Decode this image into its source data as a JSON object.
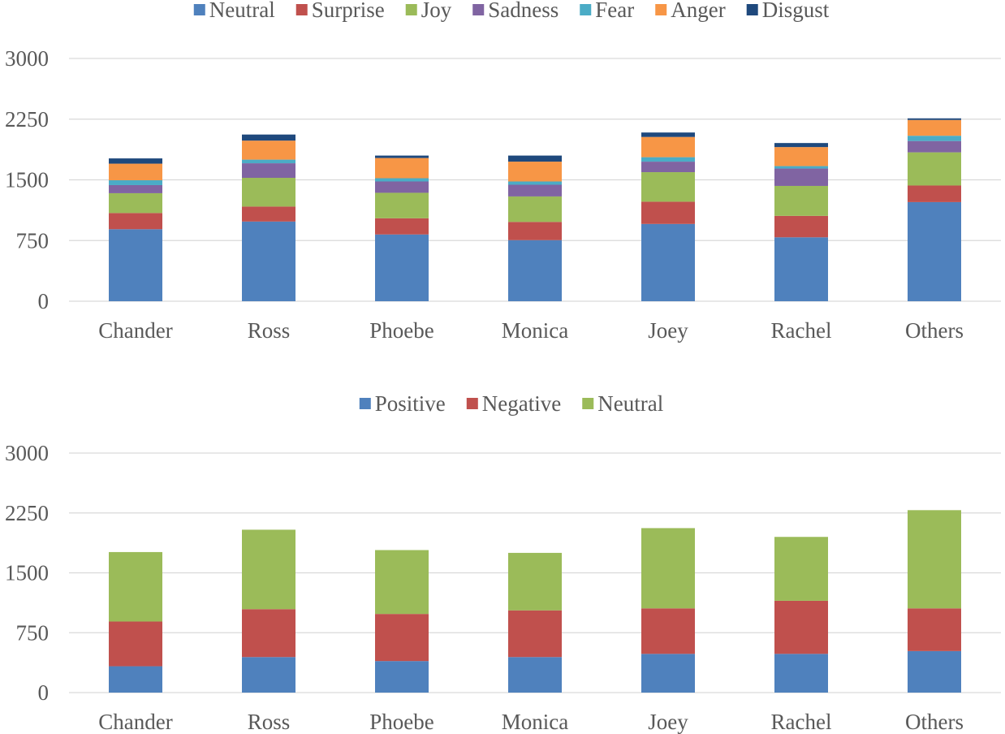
{
  "chart_data": [
    {
      "type": "bar",
      "stacked": true,
      "title": "",
      "xlabel": "",
      "ylabel": "",
      "ylim": [
        0,
        3000
      ],
      "yticks": [
        0,
        750,
        1500,
        2250,
        3000
      ],
      "legend_position": "top-center",
      "categories": [
        "Chander",
        "Ross",
        "Phoebe",
        "Monica",
        "Joey",
        "Rachel",
        "Others"
      ],
      "series": [
        {
          "name": "Neutral",
          "color": "#4f81bd",
          "values": [
            890,
            985,
            825,
            755,
            955,
            790,
            1225
          ]
        },
        {
          "name": "Surprise",
          "color": "#c0504d",
          "values": [
            200,
            185,
            200,
            225,
            275,
            265,
            205
          ]
        },
        {
          "name": "Joy",
          "color": "#9bbb59",
          "values": [
            245,
            355,
            315,
            315,
            365,
            370,
            410
          ]
        },
        {
          "name": "Sadness",
          "color": "#8064a2",
          "values": [
            100,
            180,
            140,
            145,
            130,
            215,
            140
          ]
        },
        {
          "name": "Fear",
          "color": "#4bacc6",
          "values": [
            60,
            45,
            40,
            40,
            55,
            30,
            65
          ]
        },
        {
          "name": "Anger",
          "color": "#f79646",
          "values": [
            205,
            235,
            250,
            245,
            250,
            235,
            195
          ]
        },
        {
          "name": "Disgust",
          "color": "#1f497d",
          "values": [
            65,
            75,
            30,
            75,
            55,
            50,
            20
          ]
        }
      ]
    },
    {
      "type": "bar",
      "stacked": true,
      "title": "",
      "xlabel": "",
      "ylabel": "",
      "ylim": [
        0,
        3000
      ],
      "yticks": [
        0,
        750,
        1500,
        2250,
        3000
      ],
      "legend_position": "top-center",
      "categories": [
        "Chander",
        "Ross",
        "Phoebe",
        "Monica",
        "Joey",
        "Rachel",
        "Others"
      ],
      "series": [
        {
          "name": "Positive",
          "color": "#4f81bd",
          "values": [
            330,
            445,
            395,
            445,
            485,
            485,
            520
          ]
        },
        {
          "name": "Negative",
          "color": "#c0504d",
          "values": [
            560,
            600,
            590,
            585,
            570,
            665,
            535
          ]
        },
        {
          "name": "Neutral",
          "color": "#9bbb59",
          "values": [
            870,
            995,
            800,
            720,
            1005,
            800,
            1230
          ]
        }
      ]
    }
  ]
}
